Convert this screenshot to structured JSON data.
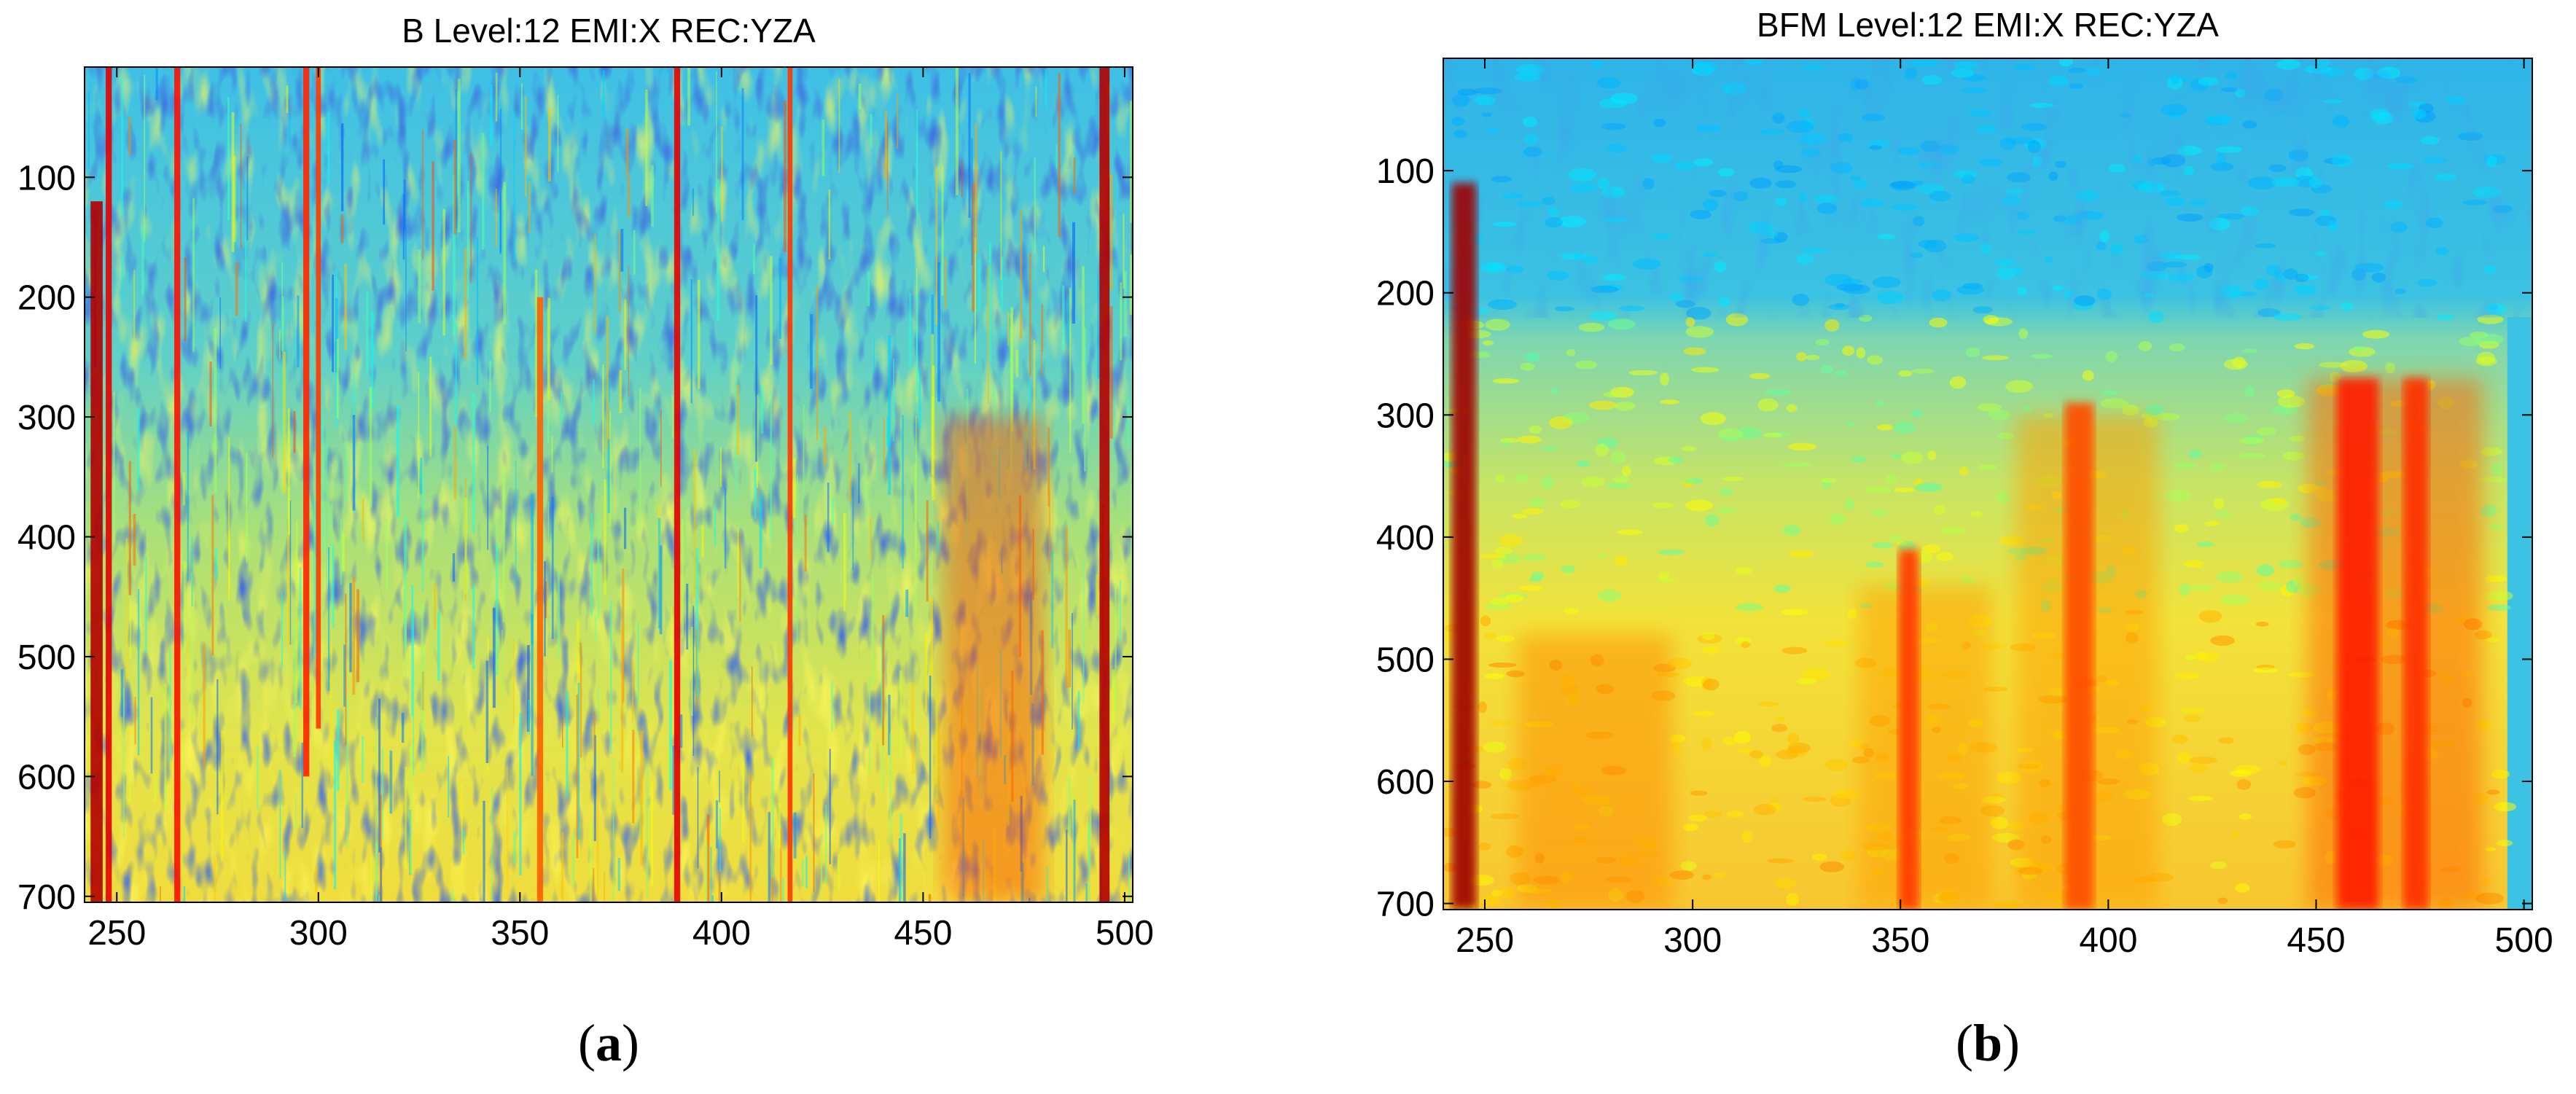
{
  "chart_data": [
    {
      "type": "heatmap",
      "panel_label": {
        "open": "(",
        "letter": "a",
        "close": ")"
      },
      "title": "B Level:12 EMI:X REC:YZA",
      "xlim": [
        242,
        502
      ],
      "ylim": [
        705,
        8
      ],
      "xticks": [
        250,
        300,
        350,
        400,
        450,
        500
      ],
      "yticks": [
        100,
        200,
        300,
        400,
        500,
        600,
        700
      ],
      "xtick_labels": [
        "250",
        "300",
        "350",
        "400",
        "450",
        "500"
      ],
      "ytick_labels": [
        "100",
        "200",
        "300",
        "400",
        "500",
        "600",
        "700"
      ],
      "colormap": "jet",
      "texture": "noisy",
      "vertical_streaks": [
        {
          "x": 245,
          "y_from": 120,
          "y_to": 705,
          "level": 0.95,
          "width": 3
        },
        {
          "x": 248,
          "y_from": 8,
          "y_to": 705,
          "level": 0.9,
          "width": 1.5
        },
        {
          "x": 265,
          "y_from": 8,
          "y_to": 705,
          "level": 0.86,
          "width": 1.5
        },
        {
          "x": 297,
          "y_from": 8,
          "y_to": 600,
          "level": 0.84,
          "width": 1.5
        },
        {
          "x": 300,
          "y_from": 8,
          "y_to": 560,
          "level": 0.82,
          "width": 1.2
        },
        {
          "x": 355,
          "y_from": 200,
          "y_to": 705,
          "level": 0.78,
          "width": 1.5
        },
        {
          "x": 389,
          "y_from": 8,
          "y_to": 705,
          "level": 0.9,
          "width": 1.5
        },
        {
          "x": 417,
          "y_from": 8,
          "y_to": 705,
          "level": 0.82,
          "width": 1.2
        },
        {
          "x": 495,
          "y_from": 8,
          "y_to": 705,
          "level": 0.95,
          "width": 2.5
        }
      ],
      "high_energy_region": {
        "x_from": 455,
        "x_to": 480,
        "y_from": 300,
        "y_to": 705,
        "level": 0.8
      }
    },
    {
      "type": "heatmap",
      "panel_label": {
        "open": "(",
        "letter": "b",
        "close": ")"
      },
      "title": "BFM Level:12 EMI:X REC:YZA",
      "xlim": [
        240,
        502
      ],
      "ylim": [
        705,
        8
      ],
      "xticks": [
        250,
        300,
        350,
        400,
        450,
        500
      ],
      "yticks": [
        100,
        200,
        300,
        400,
        500,
        600,
        700
      ],
      "xtick_labels": [
        "250",
        "300",
        "350",
        "400",
        "450",
        "500"
      ],
      "ytick_labels": [
        "100",
        "200",
        "300",
        "400",
        "500",
        "600",
        "700"
      ],
      "colormap": "jet",
      "texture": "smooth",
      "background_level_top": 0.33,
      "low_band_y": [
        8,
        220
      ],
      "mid_band_y": [
        220,
        460
      ],
      "high_band_y": [
        460,
        705
      ],
      "vertical_streaks": [
        {
          "x": 245,
          "y_from": 110,
          "y_to": 705,
          "level": 0.97,
          "width": 6
        },
        {
          "x": 352,
          "y_from": 410,
          "y_to": 705,
          "level": 0.82,
          "width": 5
        },
        {
          "x": 393,
          "y_from": 290,
          "y_to": 705,
          "level": 0.8,
          "width": 7
        },
        {
          "x": 460,
          "y_from": 270,
          "y_to": 705,
          "level": 0.85,
          "width": 10
        },
        {
          "x": 474,
          "y_from": 270,
          "y_to": 705,
          "level": 0.83,
          "width": 6
        }
      ],
      "warm_blocks": [
        {
          "x_from": 258,
          "x_to": 295,
          "y_from": 480,
          "y_to": 705,
          "level": 0.74
        },
        {
          "x_from": 340,
          "x_to": 372,
          "y_from": 440,
          "y_to": 705,
          "level": 0.72
        },
        {
          "x_from": 378,
          "x_to": 412,
          "y_from": 300,
          "y_to": 705,
          "level": 0.72
        },
        {
          "x_from": 448,
          "x_to": 490,
          "y_from": 270,
          "y_to": 705,
          "level": 0.78
        }
      ],
      "right_edge_x": 496
    }
  ]
}
